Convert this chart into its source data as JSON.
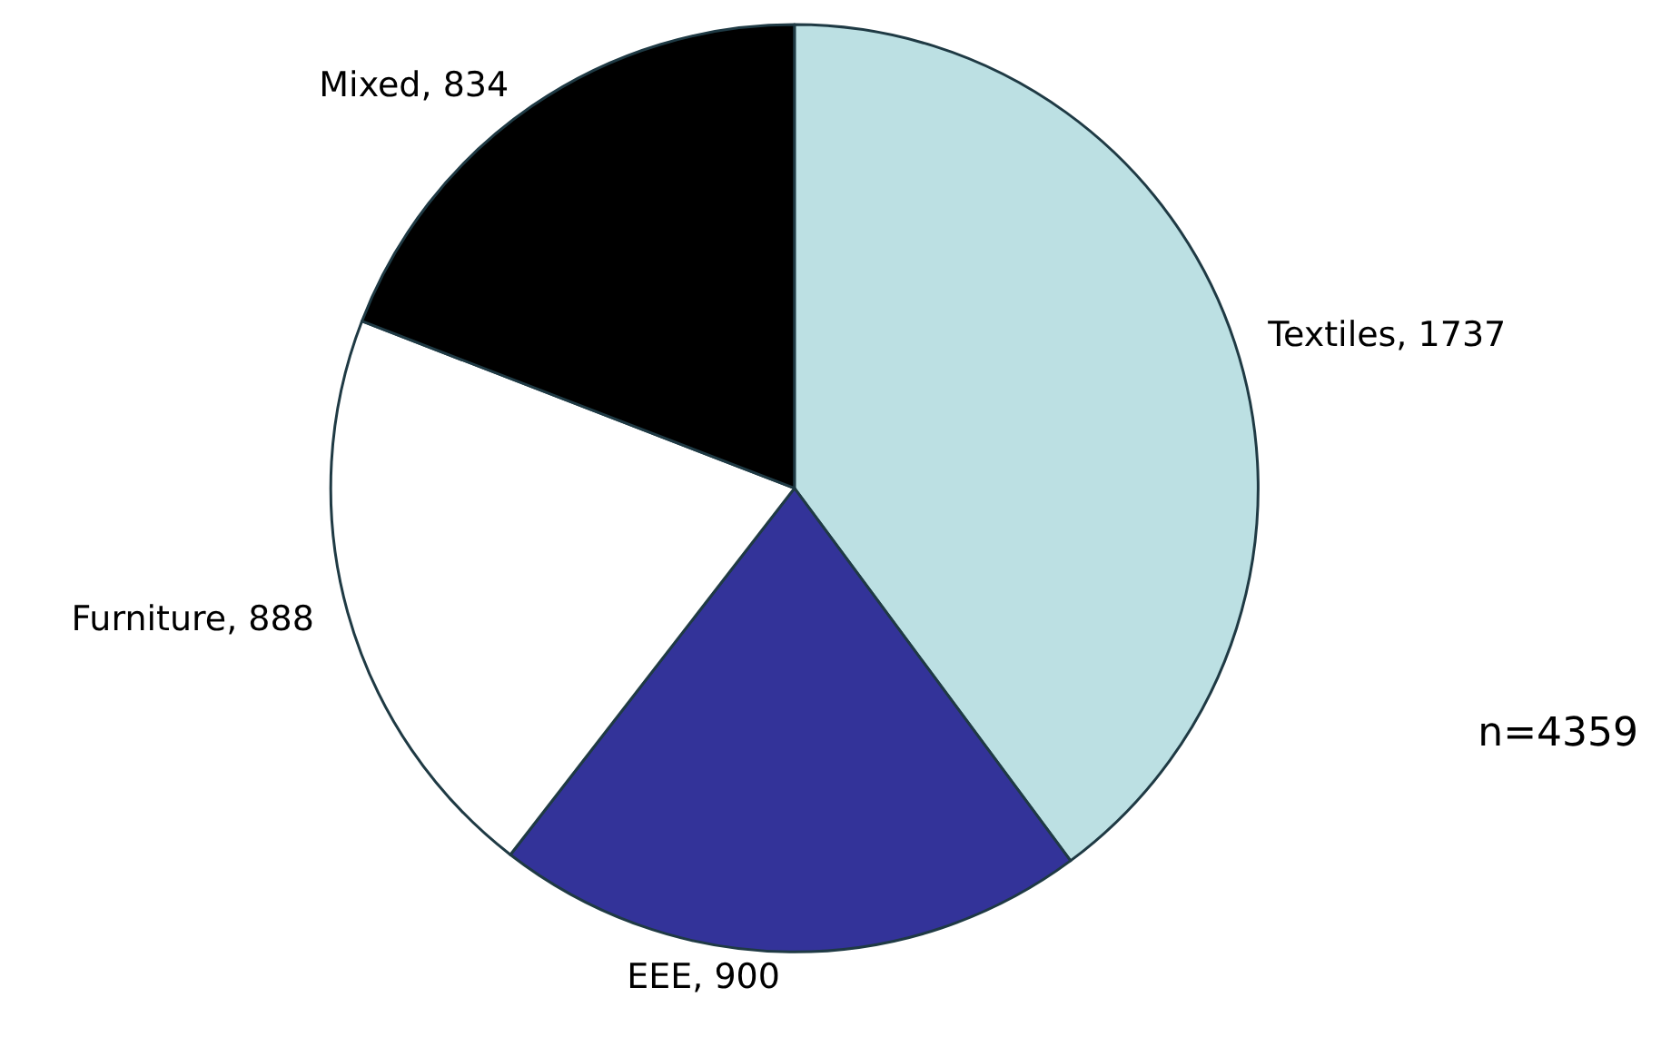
{
  "chart_data": {
    "type": "pie",
    "categories": [
      "Textiles",
      "EEE",
      "Furniture",
      "Mixed"
    ],
    "values": [
      1737,
      900,
      888,
      834
    ],
    "colors": [
      "#bce0e3",
      "#333399",
      "#ffffff",
      "#000000"
    ],
    "value_labels": [
      ", 1737",
      ", 900",
      ", 888",
      ", 834"
    ],
    "legend": false,
    "annotations": [
      "n=4359"
    ]
  }
}
